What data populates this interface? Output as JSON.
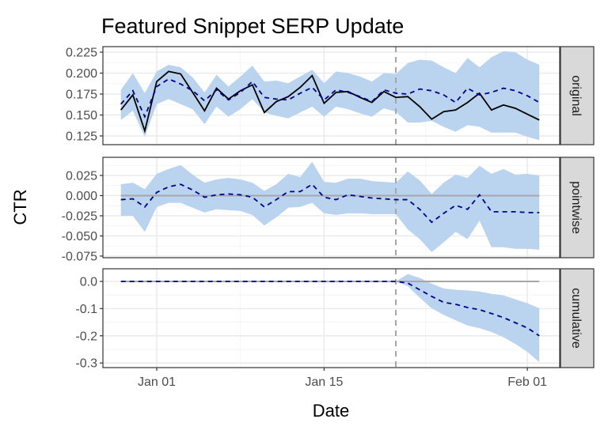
{
  "chart_data": {
    "type": "line",
    "title": "Featured Snippet SERP Update",
    "xlabel": "Date",
    "ylabel": "CTR",
    "grid": true,
    "legend": "none",
    "colors": {
      "band": "#bad3ee",
      "actual": "#000000",
      "predicted": "#00008b",
      "zero_line": "#a6a6a6",
      "intervention_line": "#a6a6a6",
      "strip_bg": "#d9d9d9"
    },
    "x_ticks": [
      "Jan 01",
      "Jan 15",
      "Feb 01"
    ],
    "intervention_date": "Jan 21",
    "dates": [
      "Dec 29",
      "Dec 30",
      "Dec 31",
      "Jan 01",
      "Jan 02",
      "Jan 03",
      "Jan 04",
      "Jan 05",
      "Jan 06",
      "Jan 07",
      "Jan 08",
      "Jan 09",
      "Jan 10",
      "Jan 11",
      "Jan 12",
      "Jan 13",
      "Jan 14",
      "Jan 15",
      "Jan 16",
      "Jan 17",
      "Jan 18",
      "Jan 19",
      "Jan 20",
      "Jan 21",
      "Jan 22",
      "Jan 23",
      "Jan 24",
      "Jan 25",
      "Jan 26",
      "Jan 27",
      "Jan 28",
      "Jan 29",
      "Jan 30",
      "Jan 31",
      "Feb 01",
      "Feb 02"
    ],
    "panels": [
      {
        "label": "original",
        "ylim": [
          0.1146,
          0.2316
        ],
        "y_ticks": [
          0.125,
          0.15,
          0.175,
          0.2,
          0.225
        ],
        "y_tick_labels": [
          "0.125",
          "0.150",
          "0.175",
          "0.200",
          "0.225"
        ],
        "zero_line": false,
        "actual": [
          0.156,
          0.174,
          0.131,
          0.19,
          0.202,
          0.199,
          0.177,
          0.155,
          0.182,
          0.169,
          0.179,
          0.186,
          0.153,
          0.166,
          0.172,
          0.183,
          0.197,
          0.164,
          0.177,
          0.178,
          0.171,
          0.165,
          0.178,
          0.171,
          0.172,
          0.16,
          0.145,
          0.154,
          0.156,
          0.165,
          0.176,
          0.156,
          0.162,
          0.158,
          0.151,
          0.144
        ],
        "predicted": [
          0.163,
          0.179,
          0.148,
          0.184,
          0.193,
          0.187,
          0.179,
          0.167,
          0.18,
          0.168,
          0.177,
          0.19,
          0.171,
          0.169,
          0.168,
          0.176,
          0.183,
          0.168,
          0.18,
          0.177,
          0.172,
          0.166,
          0.18,
          0.176,
          0.175,
          0.181,
          0.179,
          0.174,
          0.165,
          0.182,
          0.174,
          0.177,
          0.182,
          0.179,
          0.173,
          0.165
        ],
        "upper": [
          0.18,
          0.2,
          0.176,
          0.202,
          0.21,
          0.207,
          0.195,
          0.177,
          0.198,
          0.184,
          0.196,
          0.209,
          0.19,
          0.191,
          0.188,
          0.196,
          0.204,
          0.188,
          0.202,
          0.2,
          0.196,
          0.19,
          0.2,
          0.199,
          0.212,
          0.216,
          0.215,
          0.207,
          0.2,
          0.218,
          0.207,
          0.219,
          0.226,
          0.225,
          0.216,
          0.21
        ],
        "lower": [
          0.144,
          0.155,
          0.124,
          0.163,
          0.169,
          0.163,
          0.157,
          0.139,
          0.16,
          0.148,
          0.157,
          0.169,
          0.153,
          0.149,
          0.146,
          0.153,
          0.16,
          0.148,
          0.16,
          0.157,
          0.152,
          0.148,
          0.158,
          0.154,
          0.141,
          0.141,
          0.143,
          0.136,
          0.13,
          0.138,
          0.136,
          0.129,
          0.129,
          0.129,
          0.124,
          0.12
        ]
      },
      {
        "label": "pointwise",
        "ylim": [
          -0.077,
          0.0475
        ],
        "y_ticks": [
          -0.075,
          -0.05,
          -0.025,
          0.0,
          0.025
        ],
        "y_tick_labels": [
          "-0.075",
          "-0.050",
          "-0.025",
          "0.000",
          "0.025"
        ],
        "zero_line": true,
        "predicted": [
          -0.005,
          -0.004,
          -0.014,
          0.004,
          0.011,
          0.014,
          0.007,
          -0.002,
          0.001,
          0.002,
          0.001,
          -0.002,
          -0.014,
          -0.005,
          0.005,
          0.005,
          0.014,
          -0.002,
          -0.005,
          0.001,
          -0.001,
          -0.003,
          -0.004,
          -0.005,
          -0.005,
          -0.017,
          -0.033,
          -0.022,
          -0.012,
          -0.017,
          0.001,
          -0.02,
          -0.02,
          -0.02,
          -0.021,
          -0.021
        ],
        "upper": [
          0.014,
          0.016,
          0.008,
          0.027,
          0.033,
          0.038,
          0.026,
          0.016,
          0.02,
          0.022,
          0.02,
          0.016,
          0.006,
          0.014,
          0.027,
          0.023,
          0.042,
          0.017,
          0.016,
          0.021,
          0.021,
          0.018,
          0.017,
          0.016,
          0.03,
          0.019,
          0.002,
          0.016,
          0.026,
          0.022,
          0.037,
          0.027,
          0.033,
          0.026,
          0.027,
          0.025
        ],
        "lower": [
          -0.025,
          -0.025,
          -0.045,
          -0.014,
          -0.009,
          -0.009,
          -0.015,
          -0.021,
          -0.017,
          -0.018,
          -0.019,
          -0.024,
          -0.037,
          -0.027,
          -0.015,
          -0.014,
          -0.009,
          -0.022,
          -0.024,
          -0.022,
          -0.022,
          -0.023,
          -0.023,
          -0.023,
          -0.042,
          -0.054,
          -0.07,
          -0.058,
          -0.045,
          -0.054,
          -0.031,
          -0.064,
          -0.064,
          -0.066,
          -0.066,
          -0.067
        ]
      },
      {
        "label": "cumulative",
        "ylim": [
          -0.317,
          0.0465
        ],
        "y_ticks": [
          -0.3,
          -0.2,
          -0.1,
          0.0
        ],
        "y_tick_labels": [
          "-0.3",
          "-0.2",
          "-0.1",
          "0.0"
        ],
        "zero_line": true,
        "predicted": [
          0,
          0,
          0,
          0,
          0,
          0,
          0,
          0,
          0,
          0,
          0,
          0,
          0,
          0,
          0,
          0,
          0,
          0,
          0,
          0,
          0,
          0,
          0,
          0,
          -0.006,
          -0.031,
          -0.055,
          -0.077,
          -0.084,
          -0.096,
          -0.104,
          -0.118,
          -0.133,
          -0.152,
          -0.171,
          -0.2
        ],
        "upper": [
          0,
          0,
          0,
          0,
          0,
          0,
          0,
          0,
          0,
          0,
          0,
          0,
          0,
          0,
          0,
          0,
          0,
          0,
          0,
          0,
          0,
          0,
          0,
          0,
          0.027,
          0.013,
          -0.008,
          -0.026,
          -0.031,
          -0.033,
          -0.037,
          -0.046,
          -0.051,
          -0.066,
          -0.08,
          -0.099
        ],
        "lower": [
          0,
          0,
          0,
          0,
          0,
          0,
          0,
          0,
          0,
          0,
          0,
          0,
          0,
          0,
          0,
          0,
          0,
          0,
          0,
          0,
          0,
          0,
          0,
          0,
          -0.017,
          -0.06,
          -0.099,
          -0.123,
          -0.143,
          -0.162,
          -0.172,
          -0.186,
          -0.205,
          -0.23,
          -0.259,
          -0.297
        ]
      }
    ]
  }
}
